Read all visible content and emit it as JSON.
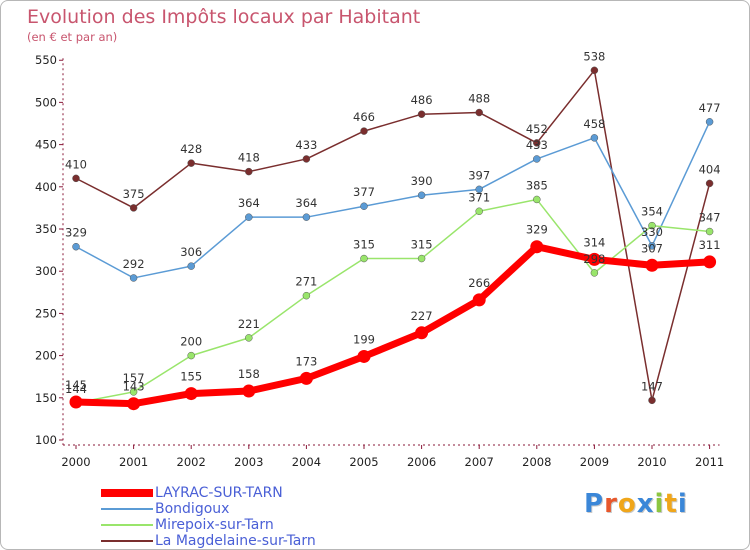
{
  "chart_data": {
    "type": "line",
    "title": "Evolution des Impôts locaux par Habitant",
    "subtitle": "(en € et par an)",
    "x": [
      "2000",
      "2001",
      "2002",
      "2003",
      "2004",
      "2005",
      "2006",
      "2007",
      "2008",
      "2009",
      "2010",
      "2011"
    ],
    "y_ticks": [
      "100",
      "150",
      "200",
      "250",
      "300",
      "350",
      "400",
      "450",
      "500",
      "550"
    ],
    "ylim": [
      100,
      550
    ],
    "grid": false,
    "legend_position": "bottom-left",
    "series": [
      {
        "name": "LAYRAC-SUR-TARN",
        "color": "#ff0000",
        "values": [
          145,
          143,
          155,
          158,
          173,
          199,
          227,
          266,
          329,
          314,
          307,
          311
        ]
      },
      {
        "name": "Bondigoux",
        "color": "#5b9bd5",
        "values": [
          329,
          292,
          306,
          364,
          364,
          377,
          390,
          397,
          433,
          458,
          330,
          477
        ]
      },
      {
        "name": "Mirepoix-sur-Tarn",
        "color": "#99e56b",
        "values": [
          144,
          157,
          200,
          221,
          271,
          315,
          315,
          371,
          385,
          298,
          354,
          347
        ]
      },
      {
        "name": "La Magdelaine-sur-Tarn",
        "color": "#7a2e2e",
        "values": [
          410,
          375,
          428,
          418,
          433,
          466,
          486,
          488,
          452,
          538,
          147,
          404
        ]
      }
    ]
  },
  "logo": {
    "letters": [
      "P",
      "r",
      "o",
      "x",
      "i",
      "t",
      "i"
    ],
    "colors": [
      "#3b87d8",
      "#e8572b",
      "#f0a61a",
      "#3b87d8",
      "#8cc640",
      "#f0a61a",
      "#3b87d8"
    ]
  }
}
